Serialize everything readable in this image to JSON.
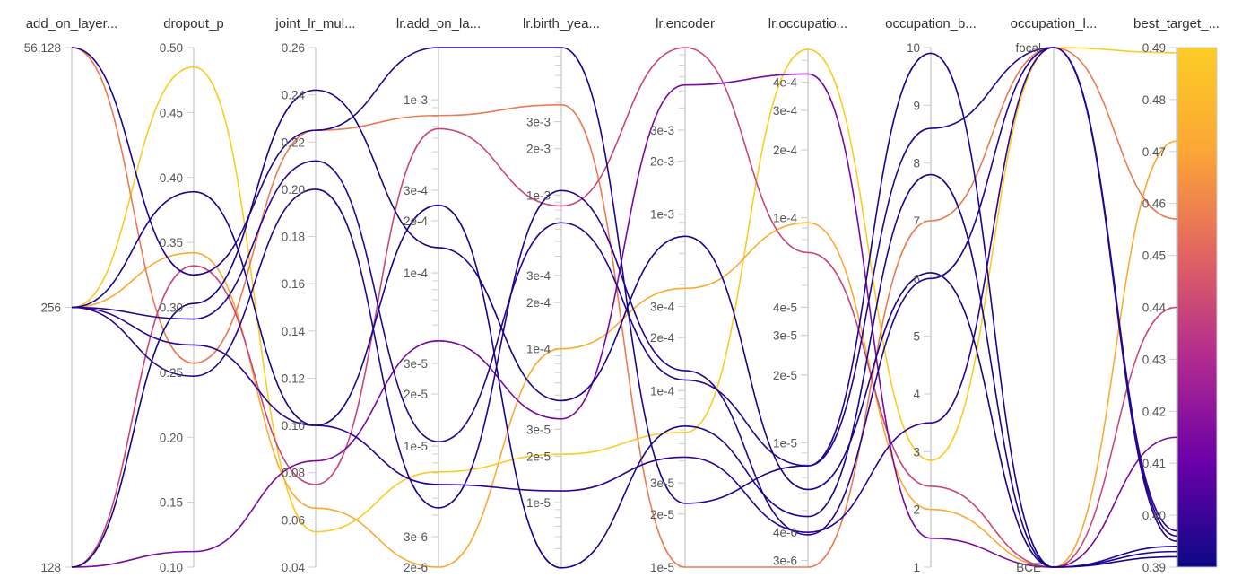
{
  "chart_data": {
    "type": "parallel_coordinates",
    "title": "",
    "color_by": "best_target",
    "colorbar": {
      "range": [
        0.39,
        0.49
      ],
      "colormap": [
        "#0d0887",
        "#6a00a8",
        "#b12a90",
        "#e16462",
        "#fca636",
        "#fccd25"
      ]
    },
    "axes": [
      {
        "key": "add_on_layers",
        "label": "add_on_layer...",
        "scale": "categorical",
        "categories": [
          "128",
          "256",
          "56,128"
        ],
        "ticks": [
          "128",
          "256",
          "56,128"
        ]
      },
      {
        "key": "dropout_p",
        "label": "dropout_p",
        "scale": "linear",
        "range": [
          0.1,
          0.5
        ],
        "ticks": [
          "0.10",
          "0.15",
          "0.20",
          "0.25",
          "0.30",
          "0.35",
          "0.40",
          "0.45",
          "0.50"
        ]
      },
      {
        "key": "joint_lr_mul",
        "label": "joint_lr_mul...",
        "scale": "linear",
        "range": [
          0.04,
          0.26
        ],
        "ticks": [
          "0.04",
          "0.06",
          "0.08",
          "0.10",
          "0.12",
          "0.14",
          "0.16",
          "0.18",
          "0.20",
          "0.22",
          "0.24",
          "0.26"
        ]
      },
      {
        "key": "lr.add_on_layers",
        "label": "lr.add_on_la...",
        "scale": "log",
        "range": [
          2e-06,
          0.002
        ],
        "ticks": [
          "2e-6",
          "3e-6",
          "1e-5",
          "2e-5",
          "3e-5",
          "1e-4",
          "2e-4",
          "3e-4",
          "1e-3"
        ]
      },
      {
        "key": "lr.birth_year",
        "label": "lr.birth_yea...",
        "scale": "log",
        "range": [
          3.8e-06,
          0.0091
        ],
        "ticks": [
          "1e-5",
          "2e-5",
          "3e-5",
          "1e-4",
          "2e-4",
          "3e-4",
          "1e-3",
          "2e-3",
          "3e-3"
        ]
      },
      {
        "key": "lr.encoder",
        "label": "lr.encoder",
        "scale": "log",
        "range": [
          1e-05,
          0.0088
        ],
        "ticks": [
          "1e-5",
          "2e-5",
          "3e-5",
          "1e-4",
          "2e-4",
          "3e-4",
          "1e-3",
          "2e-3",
          "3e-3"
        ]
      },
      {
        "key": "lr.occupation",
        "label": "lr.occupatio...",
        "scale": "log",
        "range": [
          2.8e-06,
          0.00057
        ],
        "ticks": [
          "3e-6",
          "4e-6",
          "1e-5",
          "2e-5",
          "3e-5",
          "4e-5",
          "1e-4",
          "2e-4",
          "3e-4",
          "4e-4"
        ]
      },
      {
        "key": "occupation_b",
        "label": "occupation_b...",
        "scale": "linear",
        "range": [
          1,
          10
        ],
        "ticks": [
          "1",
          "2",
          "3",
          "4",
          "5",
          "6",
          "7",
          "8",
          "9",
          "10"
        ]
      },
      {
        "key": "occupation_loss",
        "label": "occupation_l...",
        "scale": "categorical",
        "categories": [
          "BCE",
          "focal"
        ],
        "ticks": [
          "BCE",
          "focal"
        ]
      },
      {
        "key": "best_target",
        "label": "best_target_...",
        "scale": "linear",
        "range": [
          0.39,
          0.49
        ],
        "ticks": [
          "0.39",
          "0.40",
          "0.41",
          "0.42",
          "0.43",
          "0.44",
          "0.45",
          "0.46",
          "0.47",
          "0.48",
          "0.49"
        ]
      }
    ],
    "runs": [
      {
        "values": [
          "256",
          0.485,
          0.055,
          7.1e-06,
          2.06e-05,
          5.8e-05,
          0.00056,
          2.85,
          "focal",
          0.489
        ]
      },
      {
        "values": [
          "56,128",
          0.257,
          0.225,
          0.00081,
          0.00386,
          1e-05,
          2.8e-06,
          7.0,
          "focal",
          0.457
        ]
      },
      {
        "values": [
          "256",
          0.342,
          0.065,
          2e-06,
          0.0001,
          0.00038,
          9.5e-05,
          2.0,
          "BCE",
          0.472
        ]
      },
      {
        "values": [
          "128",
          0.332,
          0.075,
          0.00068,
          0.00085,
          0.0088,
          7e-05,
          2.4,
          "BCE",
          0.44
        ]
      },
      {
        "values": [
          "128",
          0.112,
          0.085,
          4.05e-05,
          3.5e-05,
          0.0054,
          0.000435,
          1.5,
          "BCE",
          0.415
        ]
      },
      {
        "values": [
          "56,128",
          0.325,
          0.225,
          0.002,
          0.0091,
          2.3e-05,
          7.9e-06,
          9.9,
          "BCE",
          0.394
        ]
      },
      {
        "values": [
          "256",
          0.389,
          0.1,
          0.000246,
          3.76e-06,
          6.3e-05,
          4.7e-06,
          7.8,
          "BCE",
          0.393
        ]
      },
      {
        "values": [
          "256",
          0.291,
          0.212,
          1.06e-05,
          0.00066,
          0.000115,
          7.9e-06,
          8.6,
          "focal",
          0.396
        ]
      },
      {
        "values": [
          "256",
          0.247,
          0.2,
          4.4e-06,
          0.00107,
          0.00013,
          3.9e-06,
          6.0,
          "focal",
          0.395
        ]
      },
      {
        "values": [
          "256",
          0.271,
          0.1,
          6e-06,
          1.19e-05,
          4.2e-05,
          4e-06,
          3.5,
          "focal",
          0.397
        ]
      },
      {
        "values": [
          "128",
          0.303,
          0.242,
          0.00014,
          4.6e-05,
          0.00075,
          6.2e-06,
          6.1,
          "BCE",
          0.392
        ]
      }
    ]
  }
}
